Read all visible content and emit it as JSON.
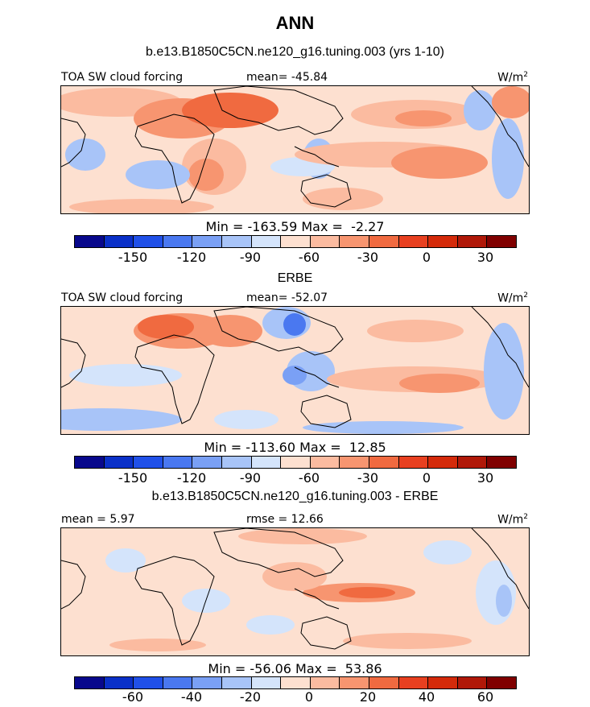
{
  "title": "ANN",
  "palette": [
    "#08088c",
    "#0a30c8",
    "#2050e8",
    "#4a78f0",
    "#7aa0f5",
    "#a8c4f8",
    "#d4e4fb",
    "#fde0d0",
    "#fbbba0",
    "#f79570",
    "#f06a40",
    "#e84020",
    "#d42a0a",
    "#b01808",
    "#800000"
  ],
  "panels": [
    {
      "subtitle": "b.e13.B1850C5CN.ne120_g16.tuning.003 (yrs 1-10)",
      "left_label": "TOA SW cloud forcing",
      "center_label": "mean= -45.84",
      "units": "W/m",
      "units_exp": "2",
      "minmax": "Min = -163.59 Max =  -2.27",
      "ticks": [
        "-150",
        "-120",
        "-90",
        "-60",
        "-30",
        "0",
        "30"
      ]
    },
    {
      "subtitle": "ERBE",
      "left_label": "TOA SW cloud forcing",
      "center_label": "mean= -52.07",
      "units": "W/m",
      "units_exp": "2",
      "minmax": "Min = -113.60 Max =  12.85",
      "ticks": [
        "-150",
        "-120",
        "-90",
        "-60",
        "-30",
        "0",
        "30"
      ]
    },
    {
      "subtitle": "b.e13.B1850C5CN.ne120_g16.tuning.003 - ERBE",
      "left_label": "mean =  5.97",
      "center_label": "rmse =  12.66",
      "units": "W/m",
      "units_exp": "2",
      "minmax": "Min = -56.06 Max =  53.86",
      "ticks": [
        "-60",
        "-40",
        "-20",
        "0",
        "20",
        "40",
        "60"
      ]
    }
  ]
}
